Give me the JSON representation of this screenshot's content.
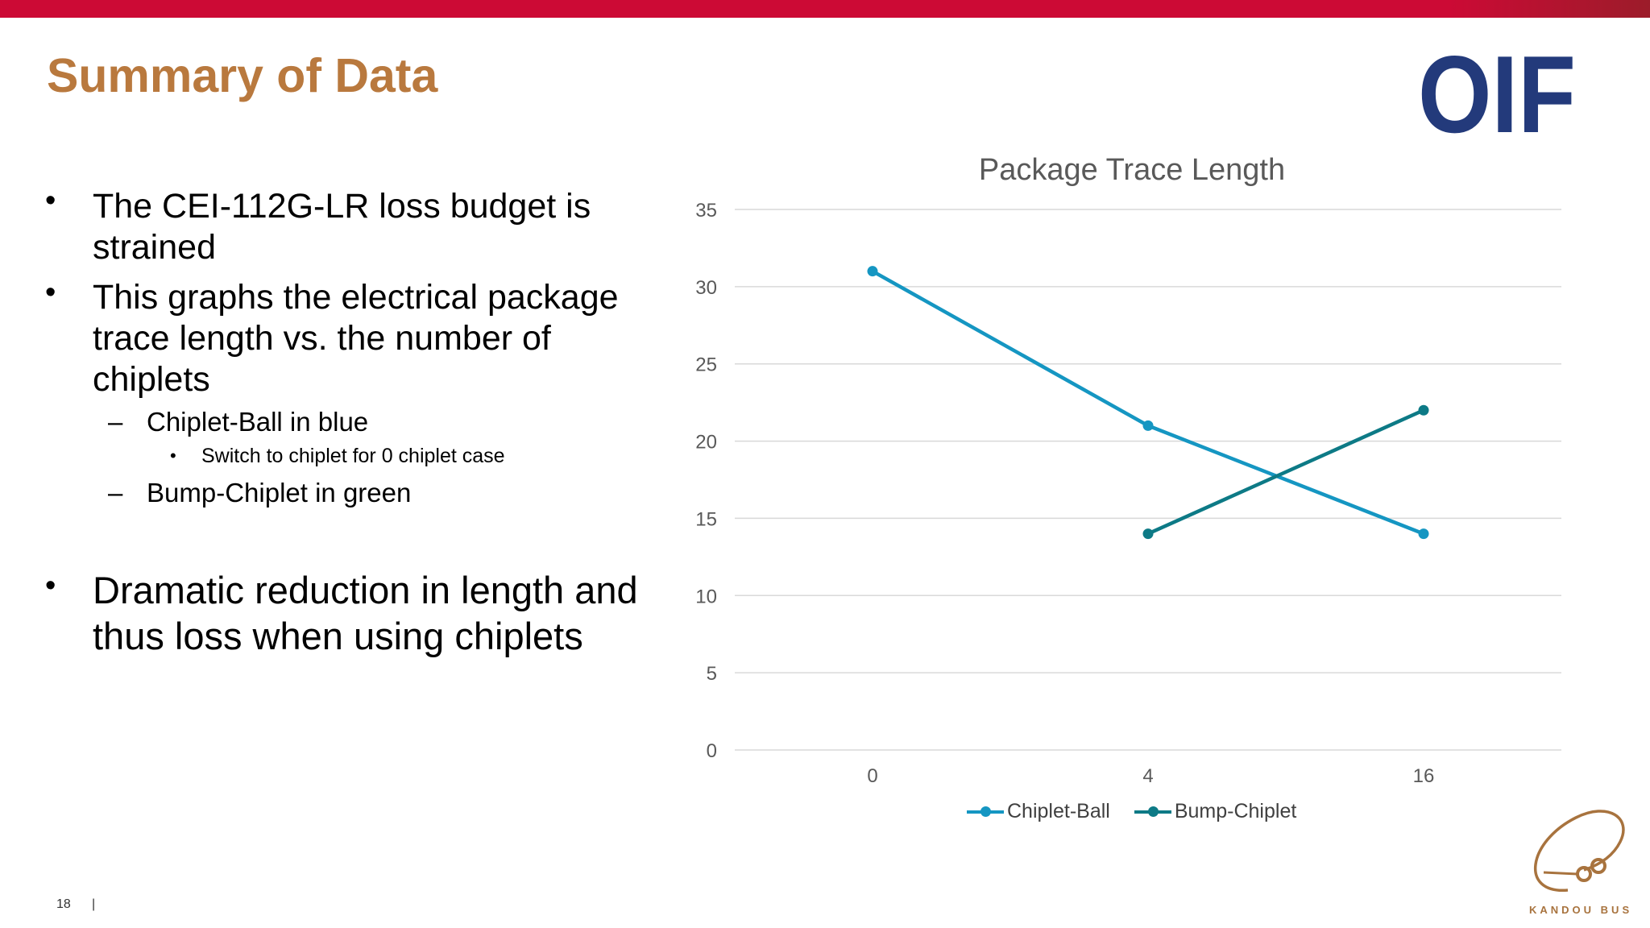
{
  "slide": {
    "title": "Summary of Data",
    "page_number": "18",
    "page_separator": "|",
    "logo_text": "OIF",
    "footer_logo_text": "KANDOU BUS",
    "colors": {
      "top_bar": "#cc0a35",
      "title": "#b9793e",
      "logo": "#233a7b"
    }
  },
  "bullets": {
    "b1": "The CEI-112G-LR loss budget is strained",
    "b2": "This graphs the electrical package trace length vs. the number of chiplets",
    "b2_sub1": "Chiplet-Ball in blue",
    "b2_sub1_sub1": "Switch to chiplet for 0 chiplet case",
    "b2_sub2": "Bump-Chiplet in green",
    "b3": "Dramatic reduction in length and thus loss when using chiplets",
    "bullet_glyph": "•",
    "dash_glyph": "–"
  },
  "chart_data": {
    "type": "line",
    "title": "Package Trace Length",
    "categories": [
      "0",
      "4",
      "16"
    ],
    "yticks": [
      "0",
      "5",
      "10",
      "15",
      "20",
      "25",
      "30",
      "35"
    ],
    "ylim": [
      0,
      35
    ],
    "grid": true,
    "legend_position": "bottom",
    "series": [
      {
        "name": "Chiplet-Ball",
        "color": "#1596c2",
        "values": [
          31,
          21,
          14
        ]
      },
      {
        "name": "Bump-Chiplet",
        "color": "#0d7a86",
        "values": [
          null,
          14,
          22
        ]
      }
    ]
  }
}
